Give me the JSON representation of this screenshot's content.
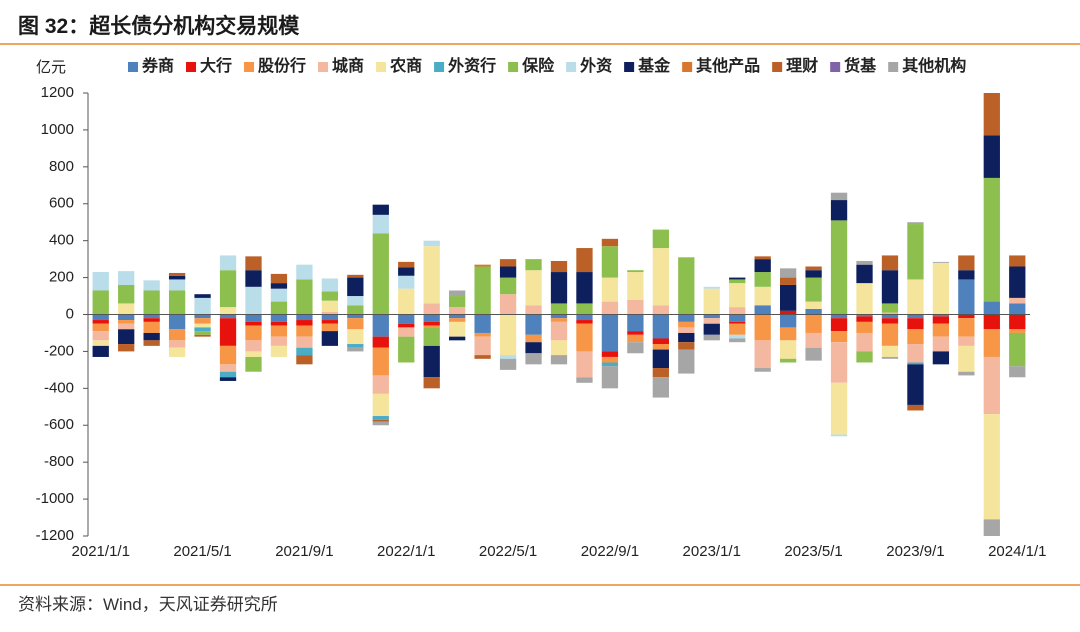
{
  "title": "图 32：超长债分机构交易规模",
  "source": "资料来源：Wind，天风证券研究所",
  "chart_data": {
    "type": "stacked_bar",
    "y_label": "亿元",
    "categories": [
      "2021/1/1",
      null,
      null,
      null,
      "2021/5/1",
      null,
      null,
      null,
      "2021/9/1",
      null,
      null,
      null,
      "2022/1/1",
      null,
      null,
      null,
      "2022/5/1",
      null,
      null,
      null,
      "2022/9/1",
      null,
      null,
      null,
      "2023/1/1",
      null,
      null,
      null,
      "2023/5/1",
      null,
      null,
      null,
      "2023/9/1",
      null,
      null,
      null,
      "2024/1/1"
    ],
    "ylim": [
      -1200,
      1200
    ],
    "yticks": [
      -1200,
      -1000,
      -800,
      -600,
      -400,
      -200,
      0,
      200,
      400,
      600,
      800,
      1000,
      1200
    ],
    "legend": "top",
    "series": [
      {
        "name": "券商",
        "color": "#4f81bd",
        "values": [
          -30,
          -30,
          -20,
          -80,
          -20,
          -20,
          -40,
          -40,
          -30,
          -30,
          -20,
          -120,
          -50,
          -40,
          -20,
          -100,
          0,
          -110,
          -20,
          -30,
          -200,
          -90,
          -130,
          -40,
          -20,
          -40,
          50,
          -70,
          30,
          -20,
          -10,
          -20,
          -20,
          -10,
          190,
          70,
          60
        ]
      },
      {
        "name": "大行",
        "color": "#e8120c",
        "values": [
          -20,
          0,
          -20,
          0,
          0,
          -150,
          -20,
          -20,
          -30,
          -20,
          0,
          -60,
          -20,
          -20,
          0,
          0,
          0,
          0,
          0,
          -20,
          -30,
          -20,
          -30,
          0,
          0,
          -10,
          0,
          20,
          0,
          -70,
          -30,
          -30,
          -60,
          -40,
          -20,
          -80,
          -80
        ]
      },
      {
        "name": "股份行",
        "color": "#f79646",
        "values": [
          -40,
          -20,
          -60,
          -60,
          -30,
          -100,
          -80,
          -60,
          -60,
          -40,
          -60,
          -150,
          0,
          -10,
          -20,
          -20,
          0,
          -40,
          -20,
          -150,
          -30,
          -40,
          -30,
          -30,
          0,
          -60,
          -140,
          -70,
          -100,
          -60,
          -60,
          -120,
          -80,
          -70,
          -100,
          -150,
          -20
        ]
      },
      {
        "name": "城商",
        "color": "#f4b8a0",
        "values": [
          -50,
          -30,
          0,
          -40,
          0,
          -40,
          -60,
          -50,
          -60,
          15,
          0,
          -100,
          -50,
          60,
          40,
          -100,
          110,
          50,
          -100,
          -140,
          70,
          80,
          50,
          -30,
          -30,
          40,
          -150,
          0,
          -80,
          -220,
          -100,
          10,
          -100,
          -80,
          -50,
          -310,
          30
        ]
      },
      {
        "name": "农商",
        "color": "#f5e59c",
        "values": [
          -30,
          60,
          0,
          -50,
          -20,
          40,
          -30,
          -60,
          0,
          60,
          -80,
          -120,
          140,
          310,
          -80,
          0,
          -220,
          190,
          -80,
          0,
          130,
          150,
          310,
          0,
          140,
          130,
          100,
          -100,
          40,
          -280,
          170,
          -60,
          190,
          280,
          -140,
          -570,
          0
        ]
      },
      {
        "name": "外资行",
        "color": "#4bacc6",
        "values": [
          0,
          0,
          0,
          0,
          -20,
          -30,
          0,
          0,
          -40,
          0,
          -20,
          -20,
          0,
          0,
          0,
          0,
          0,
          0,
          0,
          0,
          -20,
          0,
          0,
          0,
          0,
          0,
          0,
          0,
          0,
          0,
          0,
          0,
          -10,
          0,
          0,
          0,
          0
        ]
      },
      {
        "name": "保险",
        "color": "#8dbf4f",
        "values": [
          130,
          100,
          130,
          130,
          -20,
          200,
          -80,
          70,
          190,
          50,
          50,
          440,
          -140,
          -100,
          60,
          260,
          90,
          60,
          60,
          60,
          170,
          10,
          100,
          310,
          0,
          20,
          80,
          -20,
          130,
          510,
          -60,
          50,
          300,
          0,
          0,
          670,
          -180
        ]
      },
      {
        "name": "外资",
        "color": "#b9dde9",
        "values": [
          100,
          75,
          55,
          60,
          90,
          80,
          150,
          70,
          80,
          70,
          50,
          100,
          70,
          30,
          0,
          0,
          -20,
          0,
          0,
          0,
          0,
          0,
          0,
          0,
          10,
          -20,
          0,
          0,
          0,
          -10,
          0,
          0,
          0,
          0,
          0,
          0,
          0
        ]
      },
      {
        "name": "基金",
        "color": "#0d1f5c",
        "values": [
          -60,
          -80,
          -40,
          20,
          20,
          -20,
          90,
          30,
          0,
          -80,
          100,
          55,
          45,
          -170,
          -20,
          0,
          60,
          -60,
          170,
          170,
          0,
          0,
          -100,
          -50,
          -60,
          10,
          70,
          140,
          40,
          110,
          100,
          180,
          -220,
          -70,
          50,
          230,
          170
        ]
      },
      {
        "name": "其他产品",
        "color": "#d9772e",
        "values": [
          0,
          0,
          0,
          0,
          0,
          0,
          0,
          0,
          0,
          0,
          0,
          0,
          0,
          0,
          0,
          10,
          0,
          0,
          0,
          0,
          0,
          0,
          0,
          0,
          0,
          0,
          0,
          0,
          0,
          0,
          0,
          0,
          0,
          0,
          0,
          0,
          0
        ]
      },
      {
        "name": "理财",
        "color": "#bb6128",
        "values": [
          0,
          -40,
          -30,
          15,
          -10,
          0,
          75,
          50,
          -50,
          0,
          15,
          -10,
          30,
          -60,
          0,
          -20,
          40,
          0,
          60,
          130,
          40,
          0,
          -50,
          -40,
          0,
          0,
          15,
          40,
          20,
          0,
          0,
          80,
          -30,
          0,
          80,
          240,
          60
        ]
      },
      {
        "name": "货基",
        "color": "#7f62a8",
        "values": [
          0,
          0,
          0,
          0,
          0,
          0,
          0,
          0,
          0,
          0,
          0,
          0,
          0,
          0,
          0,
          0,
          0,
          0,
          0,
          0,
          0,
          0,
          0,
          0,
          0,
          0,
          0,
          0,
          0,
          0,
          0,
          0,
          0,
          0,
          0,
          0,
          0
        ]
      },
      {
        "name": "其他机构",
        "color": "#a6a6a6",
        "values": [
          0,
          0,
          0,
          0,
          0,
          0,
          0,
          0,
          0,
          0,
          -20,
          -20,
          0,
          0,
          30,
          0,
          -60,
          -60,
          -50,
          -30,
          -120,
          -60,
          -110,
          -130,
          -30,
          -20,
          -20,
          50,
          -70,
          40,
          20,
          -10,
          10,
          5,
          -20,
          -100,
          -60
        ]
      }
    ]
  }
}
